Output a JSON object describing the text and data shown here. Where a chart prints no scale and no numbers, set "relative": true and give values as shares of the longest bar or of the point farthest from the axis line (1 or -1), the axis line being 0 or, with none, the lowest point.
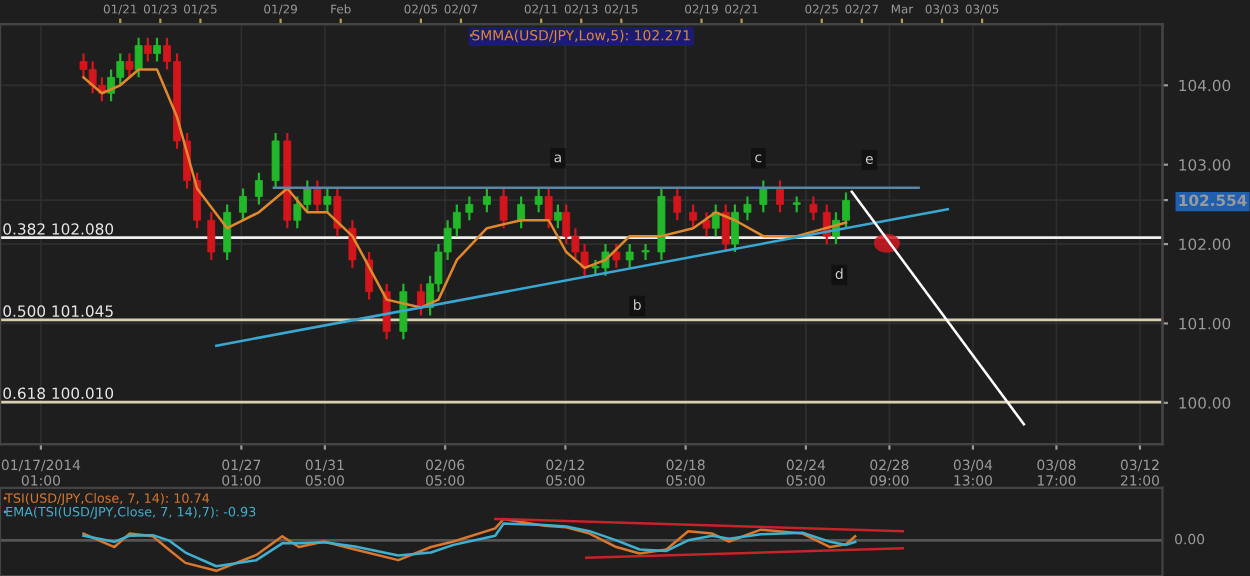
{
  "chart_data": [
    {
      "type": "candlestick",
      "x": [
        "2014-01-19T04:00",
        "2014-01-19T15:00",
        "2014-01-20T02:00",
        "2014-01-20T13:00",
        "2014-01-21T00:00",
        "2014-01-21T11:00",
        "2014-01-21T22:00",
        "2014-01-22T09:00",
        "2014-01-22T20:00",
        "2014-01-23T08:00",
        "2014-01-23T20:00",
        "2014-01-24T08:00",
        "2014-01-24T20:00",
        "2014-01-25T13:00",
        "2014-01-26T08:00",
        "2014-01-27T03:00",
        "2014-01-27T22:00",
        "2014-01-28T18:00",
        "2014-01-29T08:00",
        "2014-01-29T20:00",
        "2014-01-30T08:00",
        "2014-01-30T20:00",
        "2014-01-31T08:00",
        "2014-01-31T20:00",
        "2014-02-01T14:00",
        "2014-02-02T10:00",
        "2014-02-03T07:00",
        "2014-02-04T03:00",
        "2014-02-05T00:00",
        "2014-02-05T11:00",
        "2014-02-05T21:00",
        "2014-02-06T08:00",
        "2014-02-06T19:00",
        "2014-02-07T10:00",
        "2014-02-08T07:00",
        "2014-02-09T03:00",
        "2014-02-10T00:00",
        "2014-02-10T21:00",
        "2014-02-11T09:00",
        "2014-02-11T20:00",
        "2014-02-12T06:00",
        "2014-02-12T17:00",
        "2014-02-13T04:00",
        "2014-02-13T17:00",
        "2014-02-14T05:00",
        "2014-02-14T18:00",
        "2014-02-15T10:00",
        "2014-02-16T05:00",
        "2014-02-17T00:00",
        "2014-02-17T19:00",
        "2014-02-18T14:00",
        "2014-02-19T06:00",
        "2014-02-19T17:00",
        "2014-02-20T05:00",
        "2014-02-20T16:00",
        "2014-02-21T07:00",
        "2014-02-22T02:00",
        "2014-02-22T22:00",
        "2014-02-23T18:00",
        "2014-02-24T14:00",
        "2014-02-25T06:00",
        "2014-02-25T17:00",
        "2014-02-26T05:00"
      ],
      "ohlc": [
        [
          104.3,
          104.4,
          104.1,
          104.2
        ],
        [
          104.2,
          104.3,
          103.9,
          104.0
        ],
        [
          104.0,
          104.1,
          103.8,
          103.9
        ],
        [
          103.9,
          104.2,
          103.8,
          104.1
        ],
        [
          104.1,
          104.4,
          104.0,
          104.3
        ],
        [
          104.3,
          104.4,
          104.1,
          104.2
        ],
        [
          104.2,
          104.6,
          104.1,
          104.5
        ],
        [
          104.5,
          104.6,
          104.3,
          104.4
        ],
        [
          104.4,
          104.6,
          104.3,
          104.5
        ],
        [
          104.5,
          104.6,
          104.2,
          104.3
        ],
        [
          104.3,
          104.4,
          103.2,
          103.3
        ],
        [
          103.3,
          103.4,
          102.7,
          102.8
        ],
        [
          102.8,
          102.9,
          102.2,
          102.3
        ],
        [
          102.3,
          102.4,
          101.8,
          101.9
        ],
        [
          101.9,
          102.5,
          101.8,
          102.4
        ],
        [
          102.4,
          102.7,
          102.3,
          102.6
        ],
        [
          102.6,
          102.9,
          102.5,
          102.8
        ],
        [
          102.8,
          103.4,
          102.7,
          103.3
        ],
        [
          103.3,
          103.4,
          102.2,
          102.3
        ],
        [
          102.3,
          102.6,
          102.2,
          102.5
        ],
        [
          102.5,
          102.8,
          102.4,
          102.7
        ],
        [
          102.7,
          102.8,
          102.4,
          102.5
        ],
        [
          102.5,
          102.7,
          102.4,
          102.6
        ],
        [
          102.6,
          102.7,
          102.1,
          102.2
        ],
        [
          102.2,
          102.3,
          101.7,
          101.8
        ],
        [
          101.8,
          101.9,
          101.3,
          101.4
        ],
        [
          101.4,
          101.5,
          100.8,
          100.9
        ],
        [
          100.9,
          101.5,
          100.8,
          101.4
        ],
        [
          101.4,
          101.5,
          101.1,
          101.2
        ],
        [
          101.2,
          101.6,
          101.1,
          101.5
        ],
        [
          101.5,
          102.0,
          101.4,
          101.9
        ],
        [
          101.9,
          102.3,
          101.8,
          102.2
        ],
        [
          102.2,
          102.5,
          102.1,
          102.4
        ],
        [
          102.4,
          102.6,
          102.3,
          102.5
        ],
        [
          102.5,
          102.7,
          102.4,
          102.6
        ],
        [
          102.6,
          102.7,
          102.2,
          102.3
        ],
        [
          102.3,
          102.6,
          102.2,
          102.5
        ],
        [
          102.5,
          102.7,
          102.4,
          102.6
        ],
        [
          102.6,
          102.7,
          102.2,
          102.3
        ],
        [
          102.3,
          102.5,
          102.2,
          102.4
        ],
        [
          102.4,
          102.5,
          102.0,
          102.1
        ],
        [
          102.1,
          102.2,
          101.8,
          101.9
        ],
        [
          101.9,
          102.0,
          101.6,
          101.7
        ],
        [
          101.7,
          101.8,
          101.6,
          101.7
        ],
        [
          101.7,
          102.0,
          101.6,
          101.9
        ],
        [
          101.9,
          102.0,
          101.7,
          101.8
        ],
        [
          101.8,
          102.0,
          101.7,
          101.9
        ],
        [
          101.9,
          102.0,
          101.8,
          101.9
        ],
        [
          101.9,
          102.7,
          101.8,
          102.6
        ],
        [
          102.6,
          102.7,
          102.3,
          102.4
        ],
        [
          102.4,
          102.5,
          102.2,
          102.3
        ],
        [
          102.3,
          102.4,
          102.1,
          102.2
        ],
        [
          102.2,
          102.5,
          102.1,
          102.4
        ],
        [
          102.4,
          102.5,
          101.9,
          102.0
        ],
        [
          102.0,
          102.5,
          101.9,
          102.4
        ],
        [
          102.4,
          102.6,
          102.3,
          102.5
        ],
        [
          102.5,
          102.8,
          102.4,
          102.7
        ],
        [
          102.7,
          102.8,
          102.4,
          102.5
        ],
        [
          102.5,
          102.6,
          102.4,
          102.5
        ],
        [
          102.5,
          102.6,
          102.3,
          102.4
        ],
        [
          102.4,
          102.5,
          102.0,
          102.1
        ],
        [
          102.1,
          102.4,
          102.0,
          102.3
        ],
        [
          102.3,
          102.65,
          102.2,
          102.55
        ]
      ],
      "series": [
        {
          "name": "SMMA(USD/JPY,Low,5): 102.271",
          "type": "line",
          "color": "#e0892c",
          "x": [
            "2014-01-19T04:00",
            "2014-01-20T02:00",
            "2014-01-21T00:00",
            "2014-01-21T22:00",
            "2014-01-22T20:00",
            "2014-01-23T20:00",
            "2014-01-24T20:00",
            "2014-01-26T08:00",
            "2014-01-27T22:00",
            "2014-01-29T08:00",
            "2014-01-30T08:00",
            "2014-01-31T08:00",
            "2014-02-01T14:00",
            "2014-02-03T07:00",
            "2014-02-05T00:00",
            "2014-02-05T21:00",
            "2014-02-06T19:00",
            "2014-02-08T07:00",
            "2014-02-10T00:00",
            "2014-02-11T09:00",
            "2014-02-12T06:00",
            "2014-02-13T04:00",
            "2014-02-14T05:00",
            "2014-02-15T10:00",
            "2014-02-17T00:00",
            "2014-02-18T14:00",
            "2014-02-19T17:00",
            "2014-02-20T16:00",
            "2014-02-22T02:00",
            "2014-02-23T18:00",
            "2014-02-26T05:00"
          ],
          "values": [
            104.1,
            103.9,
            104.0,
            104.2,
            104.2,
            103.6,
            102.7,
            102.2,
            102.4,
            102.7,
            102.4,
            102.4,
            102.1,
            101.3,
            101.2,
            101.3,
            101.8,
            102.2,
            102.3,
            102.3,
            101.9,
            101.7,
            101.8,
            102.1,
            102.1,
            102.2,
            102.4,
            102.3,
            102.1,
            102.1,
            102.27
          ]
        },
        {
          "type": "line",
          "color": "#3aa6d2",
          "x": [
            "2014-01-25T19:00",
            "2014-03-03T07:00"
          ],
          "values": [
            100.72,
            102.44
          ]
        },
        {
          "type": "line",
          "color": "#5a88a8",
          "x": [
            "2014-01-28T16:00",
            "2014-03-01T20:00"
          ],
          "values": [
            102.71,
            102.71
          ]
        },
        {
          "type": "line",
          "color": "#ffffff",
          "x": [
            "2014-02-26T12:00",
            "2014-03-07T02:00"
          ],
          "values": [
            102.66,
            99.73
          ]
        }
      ],
      "ylim": [
        99.48,
        104.77
      ],
      "yticks": [
        {
          "value": 100,
          "label": "100.00"
        },
        {
          "value": 101,
          "label": "101.00"
        },
        {
          "value": 102,
          "label": "102.00"
        },
        {
          "value": 103,
          "label": "103.00"
        },
        {
          "value": 104,
          "label": "104.00"
        },
        {
          "value": 102.554,
          "label": "102.554"
        }
      ],
      "xlim": [
        "2014-01-15T00:00",
        "2014-03-14T00:00"
      ],
      "xticks": [
        {
          "value": "2014-01-17T01:00",
          "label": "01/17/2014 01:00"
        },
        {
          "value": "2014-01-27T01:00",
          "label": "01/27 01:00"
        },
        {
          "value": "2014-01-31T05:00",
          "label": "01/31 05:00"
        },
        {
          "value": "2014-02-06T05:00",
          "label": "02/06 05:00"
        },
        {
          "value": "2014-02-12T05:00",
          "label": "02/12 05:00"
        },
        {
          "value": "2014-02-18T05:00",
          "label": "02/18 05:00"
        },
        {
          "value": "2014-02-24T05:00",
          "label": "02/24 05:00"
        },
        {
          "value": "2014-02-28T09:00",
          "label": "02/28 09:00"
        },
        {
          "value": "2014-03-04T13:00",
          "label": "03/04 13:00"
        },
        {
          "value": "2014-03-08T17:00",
          "label": "03/08 17:00"
        },
        {
          "value": "2014-03-12T21:00",
          "label": "03/12 21:00"
        }
      ],
      "x2lim": [
        "2014-01-15T00:00",
        "2014-03-14T00:00"
      ],
      "x2ticks": [
        {
          "value": "2014-01-21",
          "label": "01/21"
        },
        {
          "value": "2014-01-23",
          "label": "01/23"
        },
        {
          "value": "2014-01-25",
          "label": "01/25"
        },
        {
          "value": "2014-01-29",
          "label": "01/29"
        },
        {
          "value": "2014-02-01",
          "label": "Feb"
        },
        {
          "value": "2014-02-05",
          "label": "02/05"
        },
        {
          "value": "2014-02-07",
          "label": "02/07"
        },
        {
          "value": "2014-02-11",
          "label": "02/11"
        },
        {
          "value": "2014-02-13",
          "label": "02/13"
        },
        {
          "value": "2014-02-15",
          "label": "02/15"
        },
        {
          "value": "2014-02-19",
          "label": "02/19"
        },
        {
          "value": "2014-02-21",
          "label": "02/21"
        },
        {
          "value": "2014-02-25",
          "label": "02/25"
        },
        {
          "value": "2014-02-27",
          "label": "02/27"
        },
        {
          "value": "2014-03-01",
          "label": "Mar"
        },
        {
          "value": "2014-03-03",
          "label": "03/03"
        },
        {
          "value": "2014-03-05",
          "label": "03/05"
        }
      ],
      "ref_lines": [
        {
          "axis": "y",
          "value": 102.08,
          "label": "0.382 102.080",
          "color": "#f0f0f0"
        },
        {
          "axis": "y",
          "value": 101.045,
          "label": "0.500 101.045",
          "color": "#d8d0b0"
        },
        {
          "axis": "y",
          "value": 100.01,
          "label": "0.618 100.010",
          "color": "#d8d0b0"
        }
      ],
      "annotations": [
        {
          "text": "a",
          "x": "2014-02-11T20:00",
          "y": 103.08
        },
        {
          "text": "b",
          "x": "2014-02-15T19:00",
          "y": 101.22
        },
        {
          "text": "c",
          "x": "2014-02-21T20:00",
          "y": 103.08
        },
        {
          "text": "d",
          "x": "2014-02-25T21:00",
          "y": 101.61
        },
        {
          "text": "e",
          "x": "2014-02-27T09:00",
          "y": 103.06
        }
      ],
      "grid": true,
      "legend": "top"
    },
    {
      "type": "line",
      "relative": true,
      "series": [
        {
          "name": "TSI(USD/JPY,Close, 7, 14): 10.74",
          "color": "#d9772e",
          "x": [
            "2014-01-19T04:00",
            "2014-01-20T17:00",
            "2014-01-21T11:00",
            "2014-01-22T15:00",
            "2014-01-23T10:00",
            "2014-01-24T06:00",
            "2014-01-25T19:00",
            "2014-01-27T19:00",
            "2014-01-29T02:00",
            "2014-01-29T22:00",
            "2014-01-31T04:00",
            "2014-02-01T17:00",
            "2014-02-03T21:00",
            "2014-02-05T12:00",
            "2014-02-06T15:00",
            "2014-02-08T17:00",
            "2014-02-09T03:00",
            "2014-02-11T04:00",
            "2014-02-12T06:00",
            "2014-02-13T10:00",
            "2014-02-14T18:00",
            "2014-02-15T22:00",
            "2014-02-17T06:00",
            "2014-02-18T08:00",
            "2014-02-19T13:00",
            "2014-02-20T09:00",
            "2014-02-21T23:00",
            "2014-02-24T01:00",
            "2014-02-25T10:00",
            "2014-02-26T05:00",
            "2014-02-26T16:00"
          ],
          "values": [
            0.22,
            -0.22,
            0.22,
            0.13,
            -0.3,
            -0.74,
            -1,
            -0.48,
            0.13,
            -0.22,
            -0.04,
            -0.3,
            -0.65,
            -0.22,
            -0.04,
            0.39,
            0.7,
            0.48,
            0.43,
            0.22,
            -0.22,
            -0.43,
            -0.3,
            0.3,
            0.22,
            -0.04,
            0.35,
            0.22,
            -0.22,
            -0.13,
            0.13
          ]
        },
        {
          "name": "EMA(TSI(USD/JPY,Close, 7, 14),7): -0.93",
          "color": "#3fb0cf",
          "x": [
            "2014-01-19T04:00",
            "2014-01-20T17:00",
            "2014-01-21T11:00",
            "2014-01-22T15:00",
            "2014-01-23T10:00",
            "2014-01-24T06:00",
            "2014-01-25T19:00",
            "2014-01-27T19:00",
            "2014-01-29T02:00",
            "2014-01-29T22:00",
            "2014-01-31T04:00",
            "2014-02-01T17:00",
            "2014-02-03T21:00",
            "2014-02-05T12:00",
            "2014-02-06T15:00",
            "2014-02-08T17:00",
            "2014-02-09T03:00",
            "2014-02-11T04:00",
            "2014-02-12T06:00",
            "2014-02-13T10:00",
            "2014-02-14T18:00",
            "2014-02-15T22:00",
            "2014-02-17T06:00",
            "2014-02-18T08:00",
            "2014-02-19T13:00",
            "2014-02-20T09:00",
            "2014-02-21T23:00",
            "2014-02-24T01:00",
            "2014-02-25T10:00",
            "2014-02-26T05:00",
            "2014-02-26T16:00"
          ],
          "values": [
            0.15,
            -0.05,
            0.15,
            0.17,
            0.0,
            -0.4,
            -0.85,
            -0.65,
            -0.1,
            -0.1,
            -0.06,
            -0.2,
            -0.5,
            -0.4,
            -0.15,
            0.15,
            0.55,
            0.5,
            0.45,
            0.3,
            0.0,
            -0.3,
            -0.35,
            0.0,
            0.15,
            0.05,
            0.2,
            0.25,
            -0.05,
            -0.15,
            -0.05
          ]
        },
        {
          "type": "line",
          "color": "#c8222a",
          "x": [
            "2014-02-08T17:00",
            "2014-03-01T01:00"
          ],
          "values": [
            0.7,
            0.3
          ]
        },
        {
          "type": "line",
          "color": "#c8222a",
          "x": [
            "2014-02-13T06:00",
            "2014-03-01T01:00"
          ],
          "values": [
            -0.57,
            -0.26
          ]
        }
      ],
      "xlim": [
        "2014-01-15T00:00",
        "2014-03-14T00:00"
      ],
      "ref_lines": [
        {
          "axis": "y",
          "value": 0,
          "label": "0.00",
          "color": "#555555"
        }
      ],
      "grid": true,
      "legend": "top left"
    }
  ]
}
